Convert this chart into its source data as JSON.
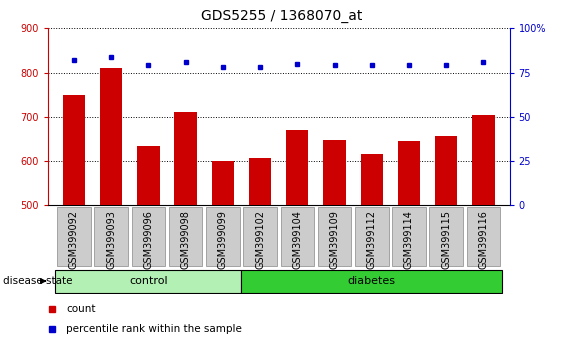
{
  "title": "GDS5255 / 1368070_at",
  "samples": [
    "GSM399092",
    "GSM399093",
    "GSM399096",
    "GSM399098",
    "GSM399099",
    "GSM399102",
    "GSM399104",
    "GSM399109",
    "GSM399112",
    "GSM399114",
    "GSM399115",
    "GSM399116"
  ],
  "counts": [
    750,
    810,
    635,
    710,
    600,
    608,
    670,
    647,
    617,
    645,
    657,
    705
  ],
  "percentiles": [
    82,
    84,
    79,
    81,
    78,
    78,
    80,
    79,
    79,
    79,
    79,
    81
  ],
  "ylim_left": [
    500,
    900
  ],
  "ylim_right": [
    0,
    100
  ],
  "yticks_left": [
    500,
    600,
    700,
    800,
    900
  ],
  "yticks_right": [
    0,
    25,
    50,
    75,
    100
  ],
  "bar_color": "#cc0000",
  "dot_color": "#0000cc",
  "n_control": 5,
  "n_diabetes": 7,
  "control_label": "control",
  "diabetes_label": "diabetes",
  "disease_state_label": "disease state",
  "legend_count_label": "count",
  "legend_percentile_label": "percentile rank within the sample",
  "control_color": "#b3f0b3",
  "diabetes_color": "#33cc33",
  "tick_bg_color": "#cccccc",
  "plot_bg_color": "#ffffff",
  "title_fontsize": 10,
  "tick_fontsize": 7,
  "label_fontsize": 8
}
